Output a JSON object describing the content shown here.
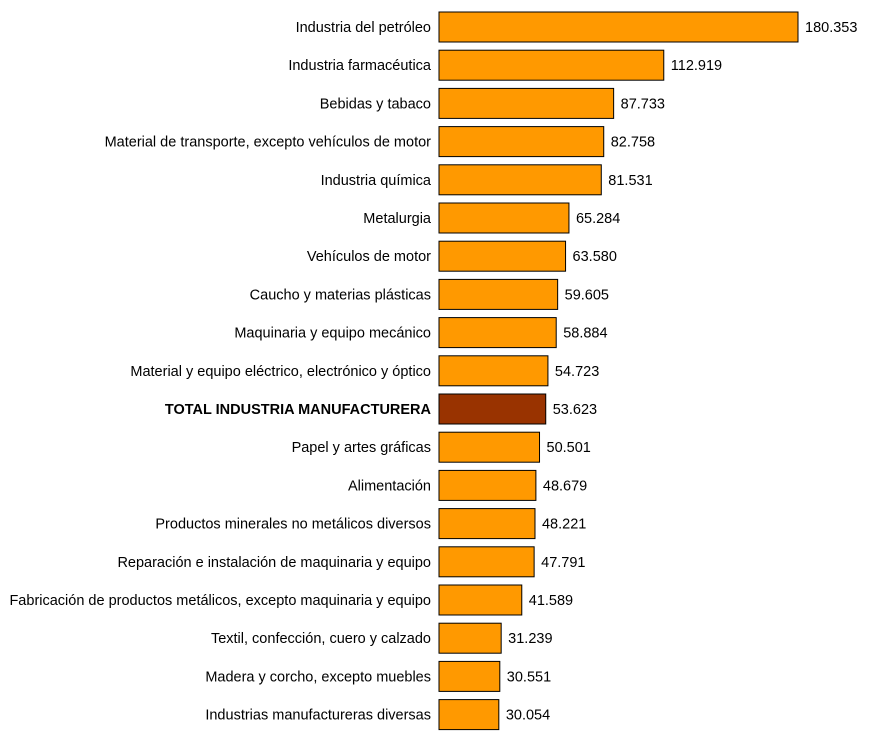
{
  "chart_data": {
    "type": "bar",
    "orientation": "horizontal",
    "title": "",
    "xlabel": "",
    "ylabel": "",
    "grid": false,
    "legend": "none",
    "xlim": [
      0,
      180.353
    ],
    "colors": {
      "bar": "#FF9900",
      "highlight": "#993300",
      "stroke": "#000000"
    },
    "categories": [
      "Industria del petróleo",
      "Industria farmacéutica",
      "Bebidas y tabaco",
      "Material de transporte, excepto vehículos de motor",
      "Industria química",
      "Metalurgia",
      "Vehículos de motor",
      "Caucho y materias plásticas",
      "Maquinaria y equipo mecánico",
      "Material y equipo eléctrico, electrónico y óptico",
      "TOTAL INDUSTRIA MANUFACTURERA",
      "Papel y artes gráficas",
      "Alimentación",
      "Productos minerales no metálicos diversos",
      "Reparación e instalación de maquinaria y equipo",
      "Fabricación de productos metálicos, excepto maquinaria y equipo",
      "Textil, confección, cuero y calzado",
      "Madera y corcho, excepto muebles",
      "Industrias manufactureras diversas"
    ],
    "values": [
      180.353,
      112.919,
      87.733,
      82.758,
      81.531,
      65.284,
      63.58,
      59.605,
      58.884,
      54.723,
      53.623,
      50.501,
      48.679,
      48.221,
      47.791,
      41.589,
      31.239,
      30.551,
      30.054
    ],
    "value_labels": [
      "180.353",
      "112.919",
      "87.733",
      "82.758",
      "81.531",
      "65.284",
      "63.580",
      "59.605",
      "58.884",
      "54.723",
      "53.623",
      "50.501",
      "48.679",
      "48.221",
      "47.791",
      "41.589",
      "31.239",
      "30.551",
      "30.054"
    ],
    "highlight_index": 10
  }
}
